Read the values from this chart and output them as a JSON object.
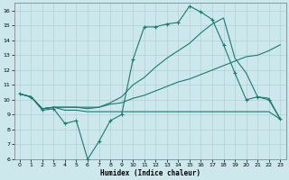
{
  "title": "",
  "xlabel": "Humidex (Indice chaleur)",
  "xlim": [
    -0.5,
    23.5
  ],
  "ylim": [
    6,
    16.5
  ],
  "xticks": [
    0,
    1,
    2,
    3,
    4,
    5,
    6,
    7,
    8,
    9,
    10,
    11,
    12,
    13,
    14,
    15,
    16,
    17,
    18,
    19,
    20,
    21,
    22,
    23
  ],
  "yticks": [
    6,
    7,
    8,
    9,
    10,
    11,
    12,
    13,
    14,
    15,
    16
  ],
  "bg_color": "#cce8ec",
  "line_color": "#1a7a6e",
  "grid_color": "#aacdd4",
  "line1_x": [
    0,
    1,
    2,
    3,
    4,
    5,
    6,
    7,
    8,
    9,
    10,
    11,
    12,
    13,
    14,
    15,
    16,
    17,
    18,
    19,
    20,
    21,
    22,
    23
  ],
  "line1_y": [
    10.4,
    10.2,
    9.3,
    9.4,
    8.4,
    8.6,
    6.0,
    7.2,
    8.6,
    9.0,
    12.7,
    14.9,
    14.9,
    15.1,
    15.2,
    16.3,
    15.9,
    15.4,
    13.7,
    11.8,
    10.0,
    10.2,
    10.0,
    8.7
  ],
  "line2_x": [
    0,
    1,
    2,
    3,
    4,
    5,
    6,
    7,
    8,
    9,
    10,
    11,
    12,
    13,
    14,
    15,
    16,
    17,
    18,
    19,
    20,
    21,
    22,
    23
  ],
  "line2_y": [
    10.4,
    10.2,
    9.4,
    9.5,
    9.3,
    9.3,
    9.2,
    9.2,
    9.2,
    9.2,
    9.2,
    9.2,
    9.2,
    9.2,
    9.2,
    9.2,
    9.2,
    9.2,
    9.2,
    9.2,
    9.2,
    9.2,
    9.2,
    8.7
  ],
  "line3_x": [
    0,
    1,
    2,
    3,
    4,
    5,
    6,
    7,
    8,
    9,
    10,
    11,
    12,
    13,
    14,
    15,
    16,
    17,
    18,
    19,
    20,
    21,
    22,
    23
  ],
  "line3_y": [
    10.4,
    10.2,
    9.4,
    9.5,
    9.5,
    9.5,
    9.5,
    9.5,
    9.7,
    9.8,
    10.1,
    10.3,
    10.6,
    10.9,
    11.2,
    11.4,
    11.7,
    12.0,
    12.3,
    12.6,
    12.9,
    13.0,
    13.3,
    13.7
  ],
  "line4_x": [
    0,
    1,
    2,
    3,
    4,
    5,
    6,
    7,
    8,
    9,
    10,
    11,
    12,
    13,
    14,
    15,
    16,
    17,
    18,
    19,
    20,
    21,
    22,
    23
  ],
  "line4_y": [
    10.4,
    10.2,
    9.4,
    9.5,
    9.5,
    9.5,
    9.4,
    9.5,
    9.8,
    10.2,
    11.0,
    11.5,
    12.2,
    12.8,
    13.3,
    13.8,
    14.5,
    15.1,
    15.5,
    12.8,
    11.8,
    10.2,
    10.1,
    8.7
  ]
}
